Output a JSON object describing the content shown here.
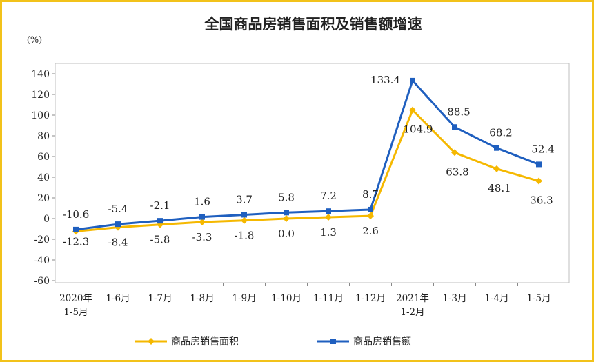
{
  "chart_data": {
    "type": "line",
    "title": "全国商品房销售面积及销售额增速",
    "unit_label": "(%)",
    "categories": [
      [
        "2020年",
        "1-5月"
      ],
      [
        "1-6月"
      ],
      [
        "1-7月"
      ],
      [
        "1-8月"
      ],
      [
        "1-9月"
      ],
      [
        "1-10月"
      ],
      [
        "1-11月"
      ],
      [
        "1-12月"
      ],
      [
        "2021年",
        "1-2月"
      ],
      [
        "1-3月"
      ],
      [
        "1-4月"
      ],
      [
        "1-5月"
      ]
    ],
    "y_ticks": [
      140,
      120,
      100,
      80,
      60,
      40,
      20,
      0,
      -20,
      -40,
      -60
    ],
    "ylim": [
      -60,
      140
    ],
    "series": [
      {
        "name": "商品房销售面积",
        "color": "#f5b800",
        "marker": "diamond",
        "values": [
          -12.3,
          -8.4,
          -5.8,
          -3.3,
          -1.8,
          0.0,
          1.3,
          2.6,
          104.9,
          63.8,
          48.1,
          36.3
        ],
        "labels": [
          "-12.3",
          "-8.4",
          "-5.8",
          "-3.3",
          "-1.8",
          "0.0",
          "1.3",
          "2.6",
          "104.9",
          "63.8",
          "48.1",
          "36.3"
        ]
      },
      {
        "name": "商品房销售额",
        "color": "#1f5fbf",
        "marker": "square",
        "values": [
          -10.6,
          -5.4,
          -2.1,
          1.6,
          3.7,
          5.8,
          7.2,
          8.7,
          133.4,
          88.5,
          68.2,
          52.4
        ],
        "labels": [
          "-10.6",
          "-5.4",
          "-2.1",
          "1.6",
          "3.7",
          "5.8",
          "7.2",
          "8.7",
          "133.4",
          "88.5",
          "68.2",
          "52.4"
        ]
      }
    ],
    "legend_position": "bottom"
  }
}
